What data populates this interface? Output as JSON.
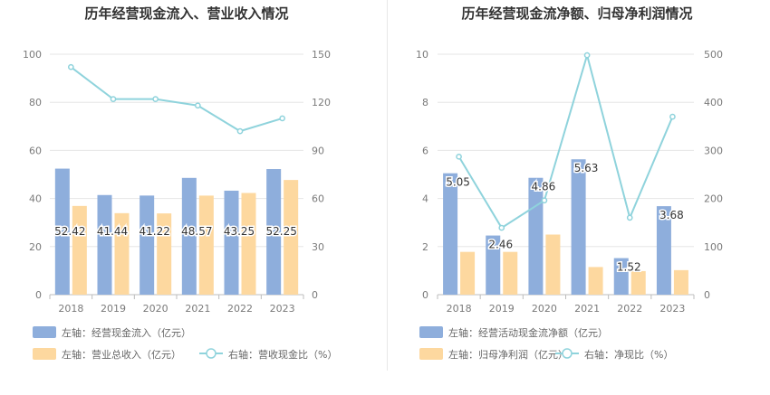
{
  "colors": {
    "bar_primary": "#8eaedc",
    "bar_secondary": "#fdd89f",
    "line": "#8fd3dc",
    "grid": "#e6e6e6",
    "axis_text": "#7a7a7a",
    "title": "#333333",
    "legend_text": "#666666"
  },
  "chart_data": [
    {
      "type": "bar",
      "title": "历年经营现金流入、营业收入情况",
      "categories": [
        "2018",
        "2019",
        "2020",
        "2021",
        "2022",
        "2023"
      ],
      "y_left": {
        "min": 0,
        "max": 100,
        "ticks": [
          "0",
          "20",
          "40",
          "60",
          "80",
          "100"
        ]
      },
      "y_right": {
        "min": 0,
        "max": 150,
        "ticks": [
          "0",
          "30",
          "60",
          "90",
          "120",
          "150"
        ]
      },
      "series": [
        {
          "name": "左轴：经营现金流入（亿元）",
          "type": "bar",
          "axis": "left",
          "values": [
            52.42,
            41.44,
            41.22,
            48.57,
            43.25,
            52.25
          ],
          "labels": [
            "52.42",
            "41.44",
            "41.22",
            "48.57",
            "43.25",
            "52.25"
          ]
        },
        {
          "name": "左轴：营业总收入（亿元）",
          "type": "bar",
          "axis": "left",
          "values": [
            36.9,
            33.9,
            33.8,
            41.2,
            42.3,
            47.7
          ]
        },
        {
          "name": "右轴：营收现金比（%）",
          "type": "line",
          "axis": "right",
          "values": [
            142,
            122,
            122,
            118,
            102,
            110
          ]
        }
      ]
    },
    {
      "type": "bar",
      "title": "历年经营现金流净额、归母净利润情况",
      "categories": [
        "2018",
        "2019",
        "2020",
        "2021",
        "2022",
        "2023"
      ],
      "y_left": {
        "min": 0,
        "max": 10,
        "ticks": [
          "0",
          "2",
          "4",
          "6",
          "8",
          "10"
        ]
      },
      "y_right": {
        "min": 0,
        "max": 500,
        "ticks": [
          "0",
          "100",
          "200",
          "300",
          "400",
          "500"
        ]
      },
      "series": [
        {
          "name": "左轴：经营活动现金流净额（亿元）",
          "type": "bar",
          "axis": "left",
          "values": [
            5.05,
            2.46,
            4.86,
            5.63,
            1.52,
            3.68
          ],
          "labels": [
            "5.05",
            "2.46",
            "4.86",
            "5.63",
            "1.52",
            "3.68"
          ]
        },
        {
          "name": "左轴：归母净利润（亿元）",
          "type": "bar",
          "axis": "left",
          "values": [
            1.78,
            1.78,
            2.5,
            1.15,
            0.98,
            1.02
          ]
        },
        {
          "name": "右轴：净现比（%）",
          "type": "line",
          "axis": "right",
          "values": [
            287,
            139,
            196,
            498,
            160,
            370
          ]
        }
      ]
    }
  ]
}
